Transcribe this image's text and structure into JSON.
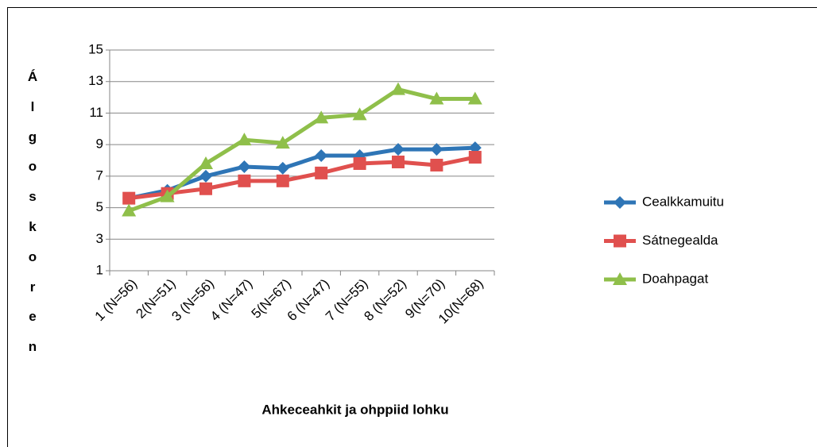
{
  "chart_data": {
    "type": "line",
    "xlabel": "Ahkeceahkit ja ohppiid lohku",
    "ylabel": "Álgoskoren",
    "categories": [
      "1 (N=56)",
      "2(N=51)",
      "3 (N=56)",
      "4 (N=47)",
      "5(N=67)",
      "6 (N=47)",
      "7 (N=55)",
      "8 (N=52)",
      "9(N=70)",
      "10(N=68)"
    ],
    "series": [
      {
        "name": "Cealkkamuitu",
        "color": "#2e75b6",
        "marker": "diamond",
        "values": [
          5.6,
          6.1,
          7.0,
          7.6,
          7.5,
          8.3,
          8.3,
          8.7,
          8.7,
          8.8
        ]
      },
      {
        "name": "Sátnegealda",
        "color": "#e0504e",
        "marker": "square",
        "values": [
          5.6,
          5.9,
          6.2,
          6.7,
          6.7,
          7.2,
          7.8,
          7.9,
          7.7,
          8.2
        ]
      },
      {
        "name": "Doahpagat",
        "color": "#8fbf4a",
        "marker": "triangle",
        "values": [
          4.8,
          5.7,
          7.8,
          9.3,
          9.1,
          10.7,
          10.9,
          12.5,
          11.9,
          11.9
        ]
      }
    ],
    "ylim": [
      1,
      15
    ],
    "yticks": [
      1,
      3,
      5,
      7,
      9,
      11,
      13,
      15
    ],
    "grid": true,
    "legend": "right"
  }
}
